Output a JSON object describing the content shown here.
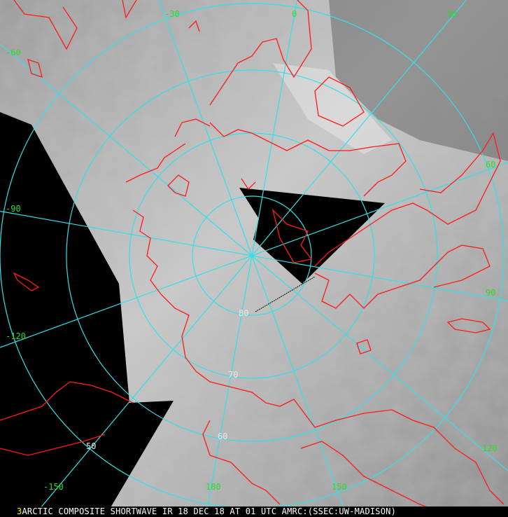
{
  "product": {
    "frame_number": "3",
    "caption": "ARCTIC COMPOSITE SHORTWAVE IR 18 DEC 18 AT 01 UTC AMRC:(SSEC:UW-MADISON)"
  },
  "map": {
    "projection": "polar stereographic, north pole centered",
    "colors": {
      "coastline": "#ff1a1a",
      "graticule": "#33e0e8",
      "longitude_labels": "#2bdc2b",
      "latitude_labels": "#e8e8e8",
      "no_data": "#000000"
    },
    "longitude_labels": [
      "-30",
      "0",
      "30",
      "60",
      "90",
      "120",
      "150",
      "180",
      "-150",
      "-120",
      "-90",
      "-60"
    ],
    "latitude_labels": [
      "80",
      "70",
      "60",
      "50"
    ]
  }
}
